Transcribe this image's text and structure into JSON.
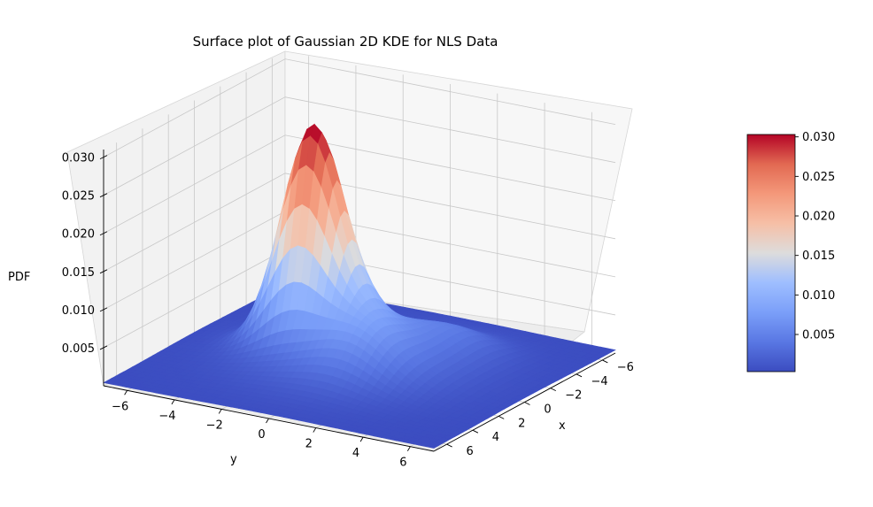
{
  "chart_data": {
    "type": "surface",
    "title": "Surface plot of Gaussian 2D KDE for NLS Data",
    "xlabel": "x",
    "ylabel": "y",
    "zlabel": "PDF",
    "xlim": [
      -7,
      7
    ],
    "ylim": [
      -7,
      7
    ],
    "zlim": [
      0,
      0.031
    ],
    "x_ticks": [
      "−6",
      "−4",
      "−2",
      "0",
      "2",
      "4",
      "6"
    ],
    "y_ticks": [
      "−6",
      "−4",
      "−2",
      "0",
      "2",
      "4",
      "6"
    ],
    "z_ticks": [
      "0.005",
      "0.010",
      "0.015",
      "0.020",
      "0.025",
      "0.030"
    ],
    "colormap": "coolwarm",
    "colorbar": {
      "ticks": [
        "0.005",
        "0.010",
        "0.015",
        "0.020",
        "0.025",
        "0.030"
      ],
      "min": 0.0003,
      "max": 0.0303
    },
    "surface": {
      "peak": {
        "x": 0,
        "y": -2,
        "z": 0.03
      },
      "components": [
        {
          "x": 0,
          "y": -2,
          "sx": 1.0,
          "sy": 1.2,
          "w": 0.026
        },
        {
          "x": 0,
          "y": 0,
          "sx": 2.6,
          "sy": 2.6,
          "w": 0.006
        },
        {
          "x": 1.8,
          "y": 1.0,
          "sx": 1.3,
          "sy": 1.3,
          "w": 0.003
        },
        {
          "x": -3.0,
          "y": 2.5,
          "sx": 1.4,
          "sy": 1.3,
          "w": 0.002
        }
      ],
      "baseline": 0.0004
    },
    "grid": true
  }
}
